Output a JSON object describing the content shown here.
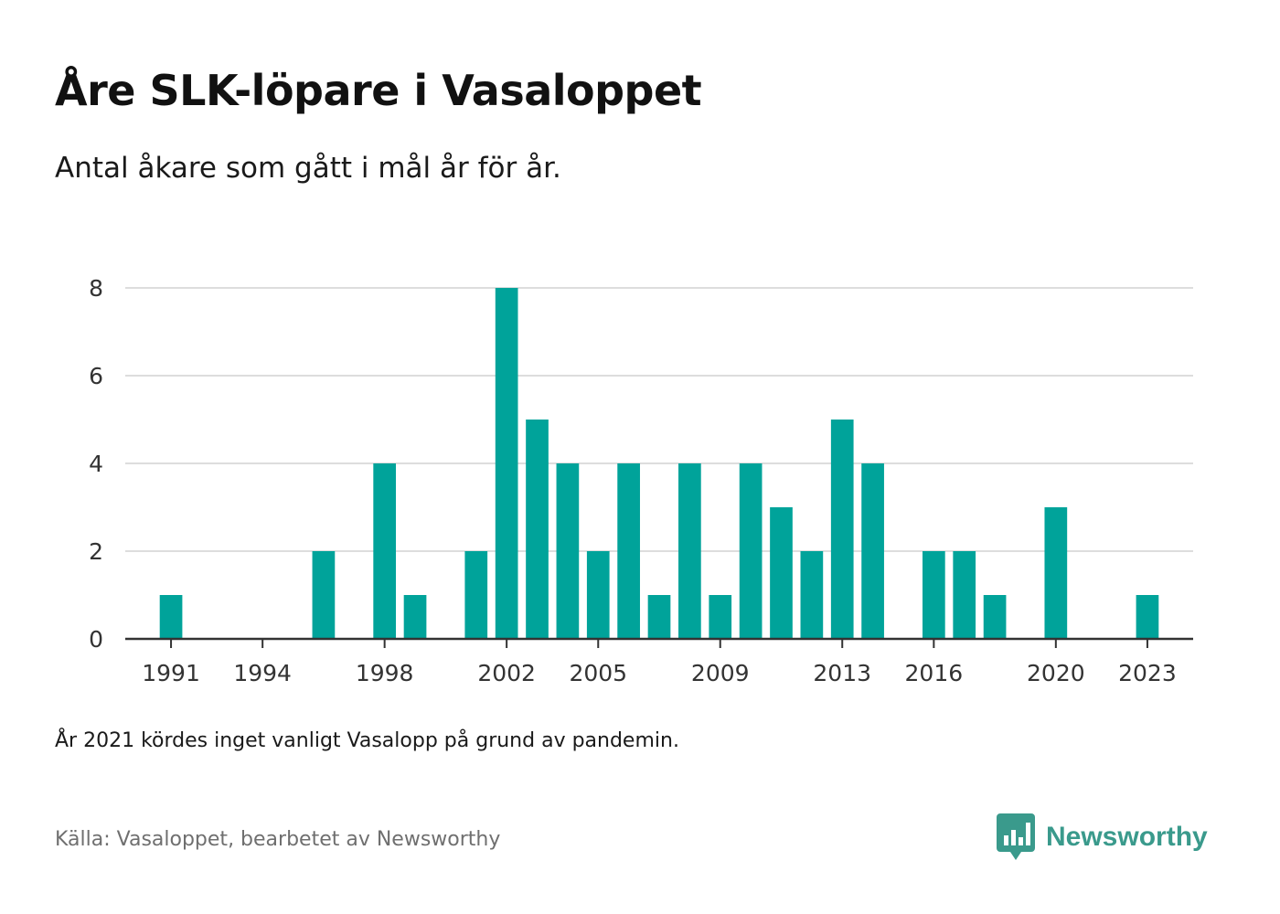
{
  "header": {
    "title": "Åre SLK-löpare i Vasaloppet",
    "subtitle": "Antal åkare som gått i mål år för år."
  },
  "footer": {
    "note": "År 2021 kördes inget vanligt Vasalopp på grund av pandemin.",
    "source": "Källa: Vasaloppet, bearbetet av Newsworthy",
    "brand_name": "Newsworthy",
    "brand_icon": "newsworthy-logo-icon"
  },
  "colors": {
    "bar": "#00a39a",
    "grid": "#dddddd",
    "axis": "#333333",
    "brand": "#3a9a8c"
  },
  "chart_data": {
    "type": "bar",
    "x": [
      1991,
      1992,
      1993,
      1994,
      1995,
      1996,
      1997,
      1998,
      1999,
      2000,
      2001,
      2002,
      2003,
      2004,
      2005,
      2006,
      2007,
      2008,
      2009,
      2010,
      2011,
      2012,
      2013,
      2014,
      2015,
      2016,
      2017,
      2018,
      2019,
      2020,
      2021,
      2022,
      2023
    ],
    "values": [
      1,
      0,
      0,
      0,
      0,
      2,
      0,
      4,
      1,
      0,
      2,
      8,
      5,
      4,
      2,
      4,
      1,
      4,
      1,
      4,
      3,
      2,
      5,
      4,
      0,
      2,
      2,
      1,
      0,
      3,
      0,
      0,
      1
    ],
    "xticks": [
      "1991",
      "1994",
      "1998",
      "2002",
      "2005",
      "2009",
      "2013",
      "2016",
      "2020",
      "2023"
    ],
    "yticks": [
      "0",
      "2",
      "4",
      "6",
      "8"
    ],
    "ylim": [
      0,
      8
    ],
    "xlim": [
      1989.5,
      2024.5
    ],
    "grid": true,
    "legend": false
  }
}
